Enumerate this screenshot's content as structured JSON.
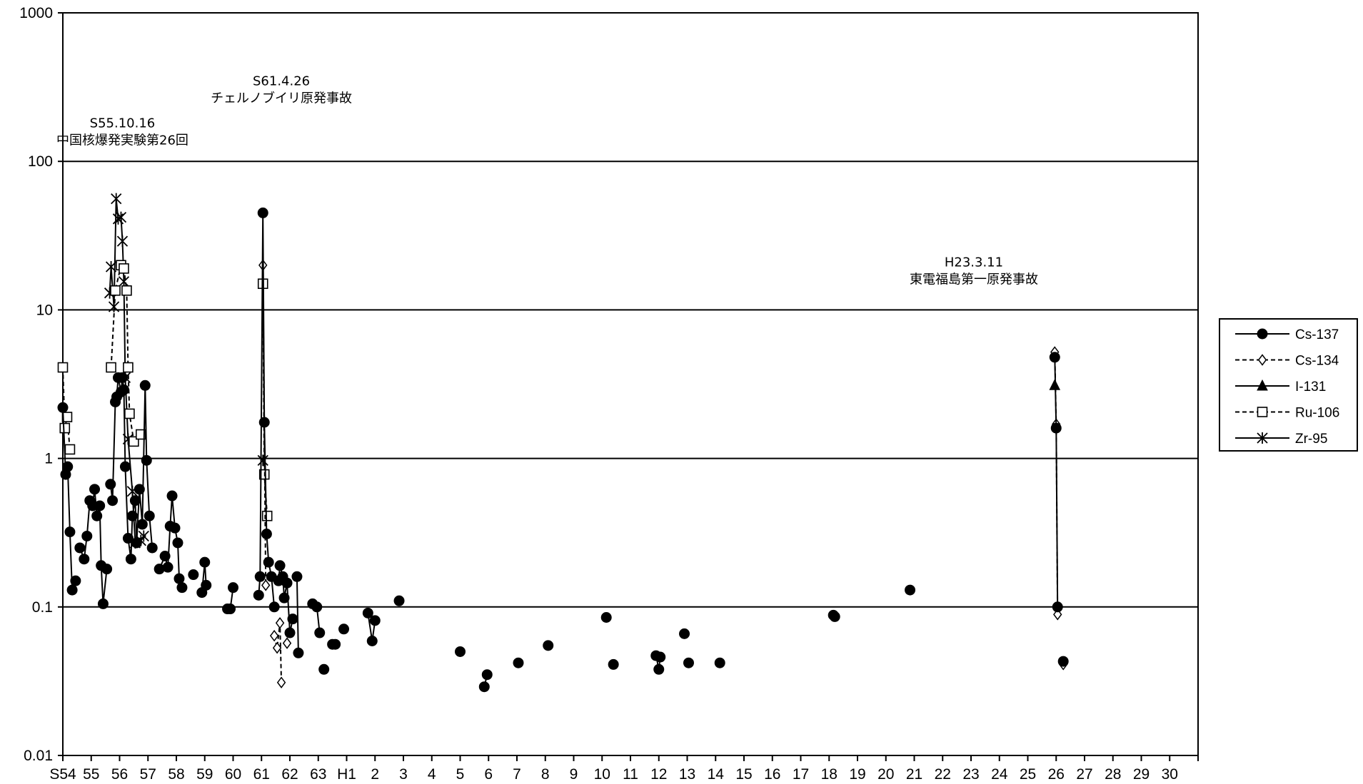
{
  "chart_data": {
    "type": "scatter",
    "title": "",
    "xlabel": "",
    "ylabel": "",
    "x_unit": "fiscal year (Showa / Heisei)",
    "xlim": [
      0,
      40
    ],
    "y_scale": "log",
    "ylim": [
      0.01,
      1000
    ],
    "grid": "horizontal",
    "legend_position": "right",
    "x_tick_labels": [
      "S54",
      "55",
      "56",
      "57",
      "58",
      "59",
      "60",
      "61",
      "62",
      "63",
      "H1",
      "2",
      "3",
      "4",
      "5",
      "6",
      "7",
      "8",
      "9",
      "10",
      "11",
      "12",
      "13",
      "14",
      "15",
      "16",
      "17",
      "18",
      "19",
      "20",
      "21",
      "22",
      "23",
      "24",
      "25",
      "26",
      "27",
      "28",
      "29",
      "30"
    ],
    "y_tick_labels": [
      "0.01",
      "0.1",
      "1",
      "10",
      "100",
      "1000"
    ],
    "annotations": [
      {
        "date": "S55.10.16",
        "text": "中国核爆発実験第26回",
        "x": 2.1,
        "y": 130
      },
      {
        "date": "S61.4.26",
        "text": "チェルノブイリ原発事故",
        "x": 7.7,
        "y": 250
      },
      {
        "date": "H23.3.11",
        "text": "東電福島第一原発事故",
        "x": 32.1,
        "y": 15
      }
    ],
    "series": [
      {
        "name": "Cs-137",
        "marker": "filled-circle",
        "line": "solid",
        "segments": [
          [
            [
              0.0,
              2.2
            ],
            [
              0.1,
              0.78
            ],
            [
              0.17,
              0.88
            ],
            [
              0.25,
              0.32
            ],
            [
              0.33,
              0.13
            ],
            [
              0.45,
              0.15
            ]
          ],
          [
            [
              0.6,
              0.25
            ],
            [
              0.75,
              0.21
            ],
            [
              0.85,
              0.3
            ],
            [
              0.95,
              0.52
            ],
            [
              1.05,
              0.48
            ],
            [
              1.12,
              0.62
            ],
            [
              1.2,
              0.41
            ],
            [
              1.3,
              0.48
            ],
            [
              1.35,
              0.19
            ],
            [
              1.42,
              0.105
            ],
            [
              1.55,
              0.18
            ]
          ],
          [
            [
              1.68,
              0.67
            ],
            [
              1.75,
              0.52
            ],
            [
              1.85,
              2.4
            ],
            [
              1.9,
              2.6
            ],
            [
              1.95,
              3.5
            ],
            [
              2.05,
              2.8
            ],
            [
              2.1,
              3.5
            ],
            [
              2.15,
              2.9
            ],
            [
              2.2,
              0.88
            ],
            [
              2.3,
              0.29
            ],
            [
              2.4,
              0.21
            ],
            [
              2.45,
              0.41
            ],
            [
              2.55,
              0.52
            ],
            [
              2.6,
              0.27
            ],
            [
              2.7,
              0.62
            ],
            [
              2.8,
              0.36
            ],
            [
              2.9,
              3.1
            ],
            [
              2.95,
              0.97
            ],
            [
              3.05,
              0.41
            ],
            [
              3.15,
              0.25
            ]
          ],
          [
            [
              3.4,
              0.18
            ],
            [
              3.6,
              0.22
            ],
            [
              3.7,
              0.185
            ],
            [
              3.78,
              0.35
            ],
            [
              3.85,
              0.56
            ],
            [
              3.95,
              0.34
            ],
            [
              4.05,
              0.27
            ],
            [
              4.1,
              0.155
            ],
            [
              4.2,
              0.135
            ]
          ],
          [
            [
              4.6,
              0.165
            ]
          ],
          [
            [
              4.9,
              0.125
            ],
            [
              5.0,
              0.2
            ],
            [
              5.05,
              0.14
            ]
          ],
          [
            [
              5.8,
              0.097
            ],
            [
              5.9,
              0.097
            ],
            [
              6.0,
              0.135
            ]
          ],
          [
            [
              6.9,
              0.12
            ],
            [
              6.95,
              0.16
            ],
            [
              7.05,
              45
            ],
            [
              7.1,
              1.75
            ],
            [
              7.18,
              0.31
            ],
            [
              7.25,
              0.2
            ],
            [
              7.35,
              0.16
            ],
            [
              7.45,
              0.1
            ]
          ],
          [
            [
              7.6,
              0.15
            ],
            [
              7.65,
              0.19
            ],
            [
              7.75,
              0.16
            ],
            [
              7.8,
              0.115
            ],
            [
              7.9,
              0.145
            ],
            [
              8.0,
              0.067
            ],
            [
              8.1,
              0.083
            ]
          ],
          [
            [
              8.25,
              0.16
            ],
            [
              8.3,
              0.049
            ]
          ],
          [
            [
              8.8,
              0.105
            ],
            [
              8.95,
              0.1
            ],
            [
              9.05,
              0.067
            ]
          ],
          [
            [
              9.2,
              0.038
            ]
          ],
          [
            [
              9.5,
              0.056
            ],
            [
              9.6,
              0.056
            ]
          ],
          [
            [
              9.9,
              0.071
            ]
          ],
          [
            [
              10.75,
              0.091
            ],
            [
              10.9,
              0.059
            ],
            [
              11.0,
              0.081
            ]
          ],
          [
            [
              11.85,
              0.11
            ]
          ],
          [
            [
              14.0,
              0.05
            ]
          ],
          [
            [
              14.85,
              0.029
            ],
            [
              14.95,
              0.035
            ]
          ],
          [
            [
              16.05,
              0.042
            ]
          ],
          [
            [
              17.1,
              0.055
            ]
          ],
          [
            [
              19.15,
              0.085
            ]
          ],
          [
            [
              19.4,
              0.041
            ]
          ],
          [
            [
              20.9,
              0.047
            ],
            [
              21.0,
              0.038
            ],
            [
              21.05,
              0.046
            ]
          ],
          [
            [
              21.9,
              0.066
            ]
          ],
          [
            [
              22.05,
              0.042
            ]
          ],
          [
            [
              23.15,
              0.042
            ]
          ],
          [
            [
              27.15,
              0.088
            ],
            [
              27.2,
              0.086
            ]
          ],
          [
            [
              29.85,
              0.13
            ]
          ],
          [
            [
              34.95,
              4.8
            ],
            [
              35.0,
              1.6
            ],
            [
              35.05,
              0.1
            ]
          ],
          [
            [
              35.25,
              0.043
            ]
          ]
        ]
      },
      {
        "name": "Cs-134",
        "marker": "open-diamond",
        "line": "dashed",
        "segments": [
          [
            [
              7.05,
              20
            ],
            [
              7.15,
              0.14
            ]
          ],
          [
            [
              7.45,
              0.064
            ],
            [
              7.55,
              0.053
            ],
            [
              7.65,
              0.078
            ],
            [
              7.7,
              0.031
            ]
          ],
          [
            [
              7.9,
              0.057
            ]
          ],
          [
            [
              34.95,
              5.2
            ],
            [
              35.0,
              1.7
            ],
            [
              35.05,
              0.089
            ]
          ],
          [
            [
              35.25,
              0.041
            ]
          ]
        ]
      },
      {
        "name": "I-131",
        "marker": "filled-triangle",
        "line": "solid",
        "segments": [
          [
            [
              34.95,
              3.1
            ]
          ]
        ]
      },
      {
        "name": "Ru-106",
        "marker": "open-square",
        "line": "dashed",
        "segments": [
          [
            [
              0.0,
              4.1
            ],
            [
              0.07,
              1.6
            ],
            [
              0.15,
              1.9
            ],
            [
              0.25,
              1.15
            ]
          ],
          [
            [
              1.7,
              4.1
            ],
            [
              1.85,
              13.5
            ],
            [
              2.05,
              20
            ],
            [
              2.15,
              19
            ],
            [
              2.25,
              13.5
            ],
            [
              2.3,
              4.1
            ],
            [
              2.35,
              2.0
            ],
            [
              2.5,
              1.3
            ],
            [
              2.75,
              1.45
            ]
          ],
          [
            [
              7.05,
              15
            ],
            [
              7.1,
              0.78
            ],
            [
              7.2,
              0.41
            ]
          ]
        ]
      },
      {
        "name": "Zr-95",
        "marker": "asterisk",
        "line": "solid",
        "segments": [
          [
            [
              1.65,
              13
            ],
            [
              1.7,
              19.5
            ],
            [
              1.8,
              10.5
            ],
            [
              1.88,
              56
            ],
            [
              1.95,
              41
            ],
            [
              2.05,
              42
            ],
            [
              2.1,
              29
            ],
            [
              2.15,
              15.5
            ],
            [
              2.2,
              3.5
            ],
            [
              2.3,
              1.35
            ],
            [
              2.45,
              0.6
            ],
            [
              2.55,
              0.27
            ],
            [
              2.75,
              0.28
            ],
            [
              2.85,
              0.3
            ]
          ],
          [
            [
              7.05,
              0.97
            ]
          ]
        ]
      }
    ]
  }
}
